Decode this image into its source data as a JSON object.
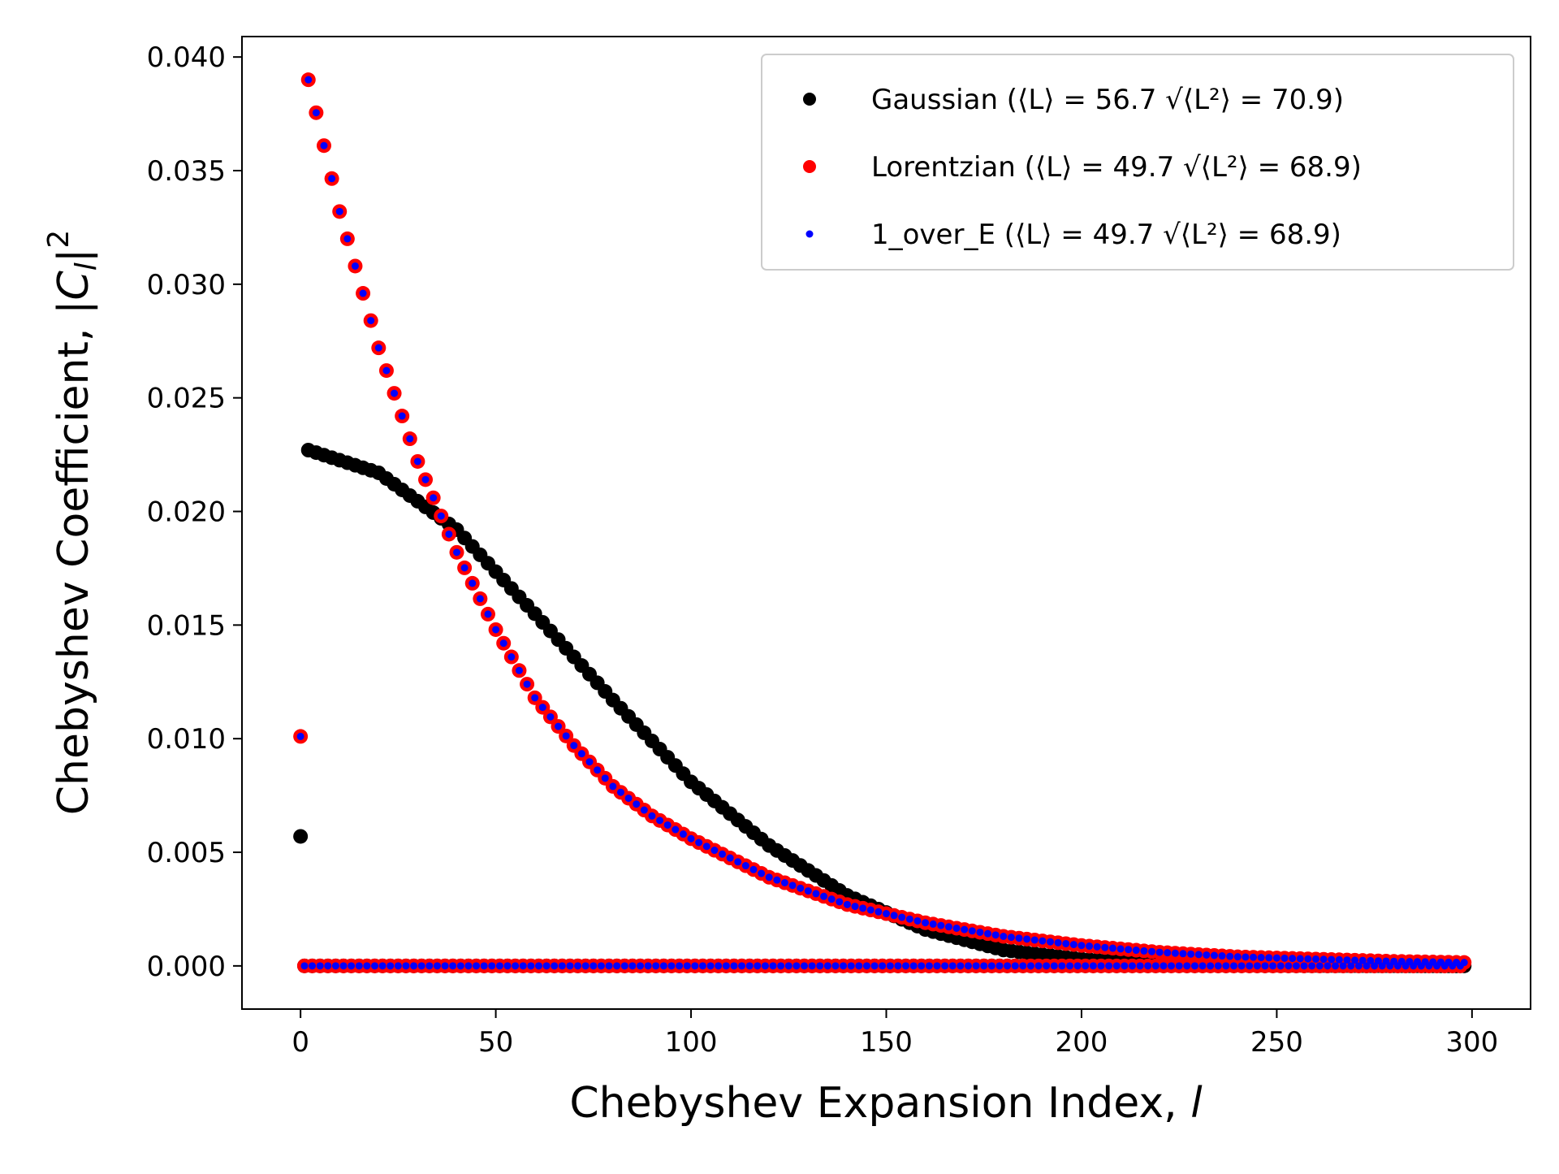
{
  "chart_data": {
    "type": "scatter",
    "xlabel": "Chebyshev Expansion Index, l",
    "ylabel": "Chebyshev Coefficient, |C_l|^2",
    "xlim": [
      -15,
      315
    ],
    "ylim": [
      -0.0019,
      0.0409
    ],
    "x_ticks": [
      "0",
      "50",
      "100",
      "150",
      "200",
      "250",
      "300"
    ],
    "x_tick_values": [
      0,
      50,
      100,
      150,
      200,
      250,
      300
    ],
    "y_ticks": [
      "0.000",
      "0.005",
      "0.010",
      "0.015",
      "0.020",
      "0.025",
      "0.030",
      "0.035",
      "0.040"
    ],
    "y_tick_values": [
      0,
      0.005,
      0.01,
      0.015,
      0.02,
      0.025,
      0.03,
      0.035,
      0.04
    ],
    "grid": false,
    "legend_position": "top-right",
    "series": [
      {
        "name": "Gaussian (⟨L⟩ = 56.7  √⟨L²⟩ = 70.9)",
        "color": "#000000",
        "x_range": [
          0,
          298
        ],
        "values": [
          [
            0,
            0.0057
          ],
          [
            2,
            0.0227
          ],
          [
            20,
            0.0217
          ],
          [
            40,
            0.0192
          ],
          [
            60,
            0.0155
          ],
          [
            80,
            0.0117
          ],
          [
            100,
            0.0081
          ],
          [
            120,
            0.0053
          ],
          [
            140,
            0.0031
          ],
          [
            160,
            0.0016
          ],
          [
            180,
            0.0007
          ],
          [
            200,
            0.0003
          ],
          [
            220,
            0.0001
          ],
          [
            240,
            5e-05
          ],
          [
            260,
            2e-05
          ],
          [
            280,
            1e-05
          ],
          [
            298,
            0.0
          ]
        ],
        "odd_index_values": 0.0
      },
      {
        "name": "Lorentzian (⟨L⟩ = 49.7  √⟨L²⟩ = 68.9)",
        "color": "#ff0000",
        "x_range": [
          0,
          298
        ],
        "values": [
          [
            0,
            0.0101
          ],
          [
            2,
            0.039
          ],
          [
            10,
            0.0332
          ],
          [
            20,
            0.0272
          ],
          [
            30,
            0.0222
          ],
          [
            40,
            0.0182
          ],
          [
            50,
            0.0148
          ],
          [
            60,
            0.0118
          ],
          [
            70,
            0.0097
          ],
          [
            80,
            0.0079
          ],
          [
            90,
            0.0066
          ],
          [
            100,
            0.0056
          ],
          [
            120,
            0.0039
          ],
          [
            140,
            0.0027
          ],
          [
            160,
            0.0019
          ],
          [
            180,
            0.0013
          ],
          [
            200,
            0.0009
          ],
          [
            220,
            0.0006
          ],
          [
            240,
            0.0004
          ],
          [
            260,
            0.0003
          ],
          [
            280,
            0.0002
          ],
          [
            298,
            0.00015
          ]
        ],
        "odd_index_values": 0.0
      },
      {
        "name": "1_over_E (⟨L⟩ = 49.7  √⟨L²⟩ = 68.9)",
        "color": "#0000ff",
        "x_range": [
          0,
          298
        ],
        "values": [
          [
            0,
            0.0101
          ],
          [
            2,
            0.039
          ],
          [
            10,
            0.0332
          ],
          [
            20,
            0.0272
          ],
          [
            30,
            0.0222
          ],
          [
            40,
            0.0182
          ],
          [
            50,
            0.0148
          ],
          [
            60,
            0.0118
          ],
          [
            70,
            0.0097
          ],
          [
            80,
            0.0079
          ],
          [
            90,
            0.0066
          ],
          [
            100,
            0.0056
          ],
          [
            120,
            0.0039
          ],
          [
            140,
            0.0027
          ],
          [
            160,
            0.0019
          ],
          [
            180,
            0.0013
          ],
          [
            200,
            0.0009
          ],
          [
            220,
            0.0006
          ],
          [
            240,
            0.0004
          ],
          [
            260,
            0.0003
          ],
          [
            280,
            0.0002
          ],
          [
            298,
            0.00015
          ]
        ],
        "odd_index_values": 0.0
      }
    ]
  }
}
